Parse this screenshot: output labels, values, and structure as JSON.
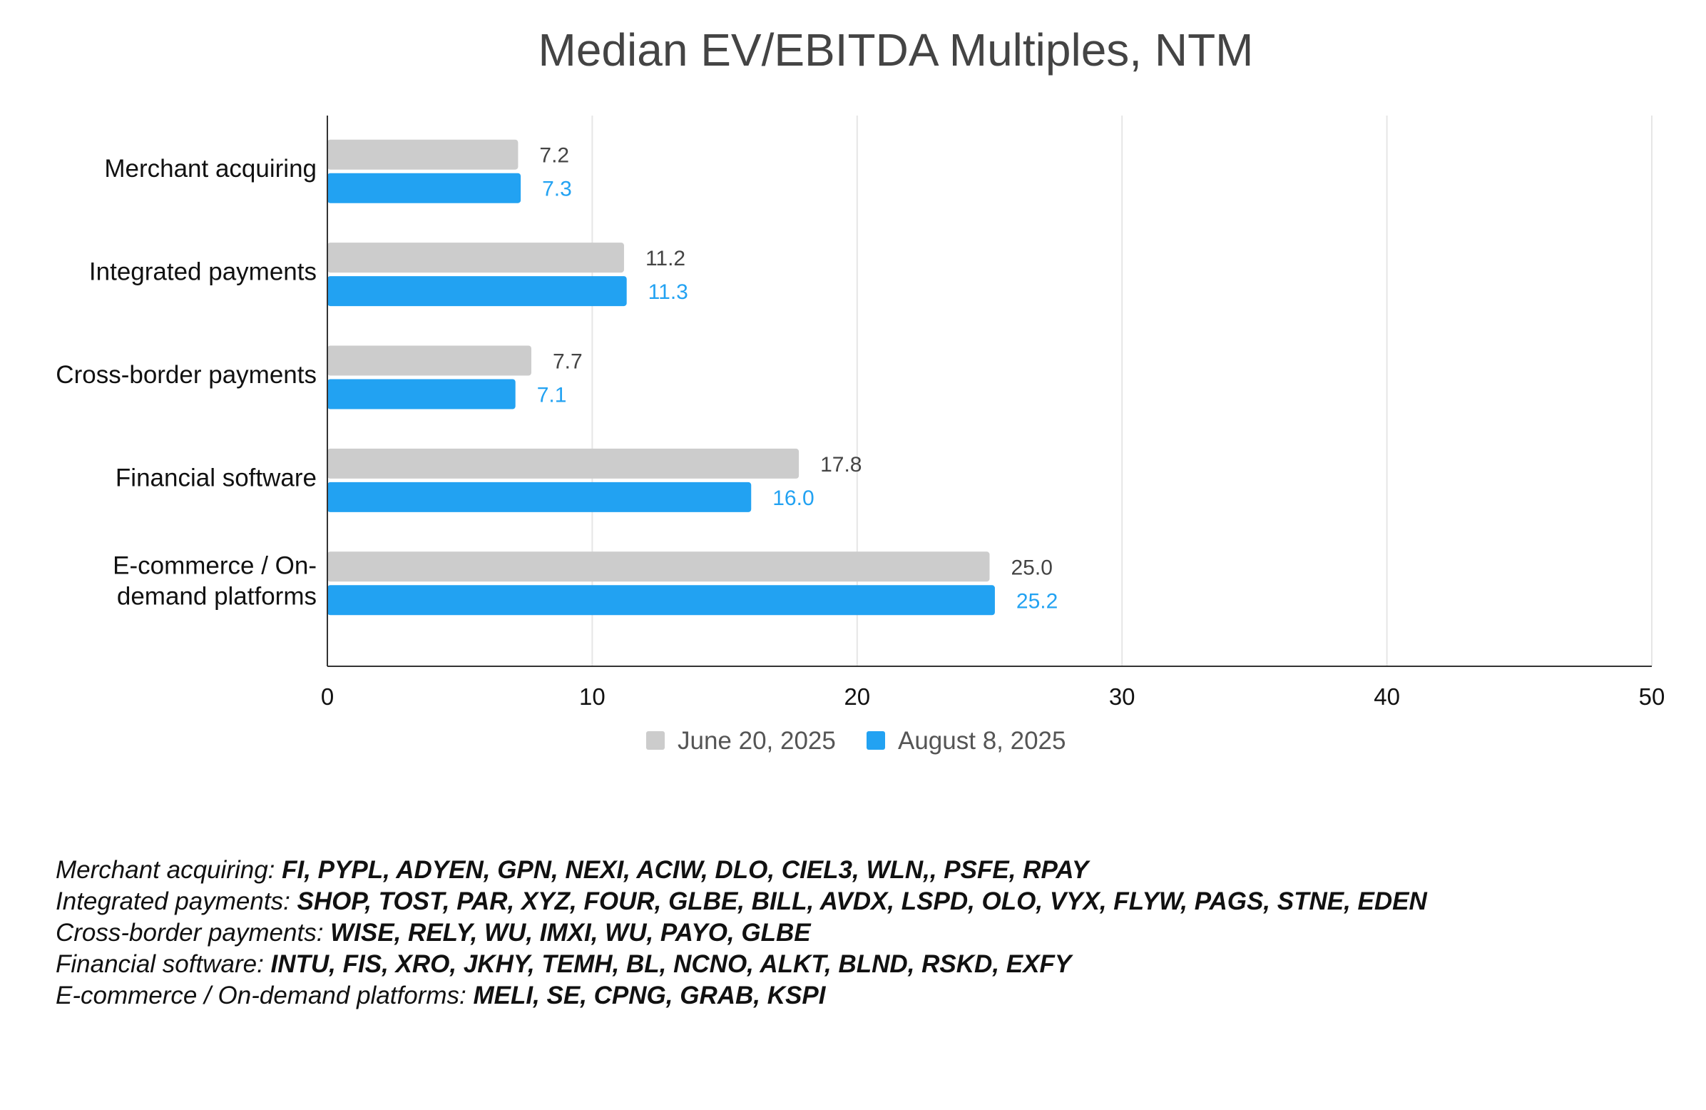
{
  "chart_data": {
    "type": "bar",
    "orientation": "horizontal",
    "title": "Median EV/EBITDA Multiples, NTM",
    "categories": [
      "Merchant acquiring",
      "Integrated payments",
      "Cross-border payments",
      "Financial software",
      "E-commerce / On-demand platforms"
    ],
    "category_lines": [
      [
        "Merchant acquiring"
      ],
      [
        "Integrated payments"
      ],
      [
        "Cross-border payments"
      ],
      [
        "Financial software"
      ],
      [
        "E-commerce / On-",
        "demand platforms"
      ]
    ],
    "series": [
      {
        "name": "June 20, 2025",
        "color": "#cccccc",
        "label_color": "#444444",
        "values": [
          7.2,
          11.2,
          7.7,
          17.8,
          25.0
        ],
        "labels": [
          "7.2",
          "11.2",
          "7.7",
          "17.8",
          "25.0"
        ]
      },
      {
        "name": "August 8, 2025",
        "color": "#22a2f2",
        "label_color": "#22a2f2",
        "values": [
          7.3,
          11.3,
          7.1,
          16.0,
          25.2
        ],
        "labels": [
          "7.3",
          "11.3",
          "7.1",
          "16.0",
          "25.2"
        ]
      }
    ],
    "xlim": [
      0,
      50
    ],
    "xticks": [
      0,
      10,
      20,
      30,
      40,
      50
    ],
    "xtick_labels": [
      "0",
      "10",
      "20",
      "30",
      "40",
      "50"
    ],
    "grid": true,
    "legend_position": "bottom"
  },
  "notes": [
    {
      "label": "Merchant acquiring: ",
      "tickers": "FI, PYPL, ADYEN, GPN, NEXI, ACIW, DLO, CIEL3, WLN,, PSFE, RPAY"
    },
    {
      "label": "Integrated payments: ",
      "tickers": "SHOP, TOST, PAR, XYZ, FOUR, GLBE, BILL, AVDX, LSPD, OLO, VYX, FLYW, PAGS, STNE, EDEN"
    },
    {
      "label": "Cross-border payments: ",
      "tickers": "WISE, RELY, WU, IMXI, WU, PAYO, GLBE"
    },
    {
      "label": "Financial software: ",
      "tickers": "INTU, FIS, XRO, JKHY, TEMH, BL, NCNO, ALKT, BLND, RSKD, EXFY"
    },
    {
      "label": "E-commerce / On-demand platforms: ",
      "tickers": "MELI, SE, CPNG, GRAB, KSPI"
    }
  ]
}
